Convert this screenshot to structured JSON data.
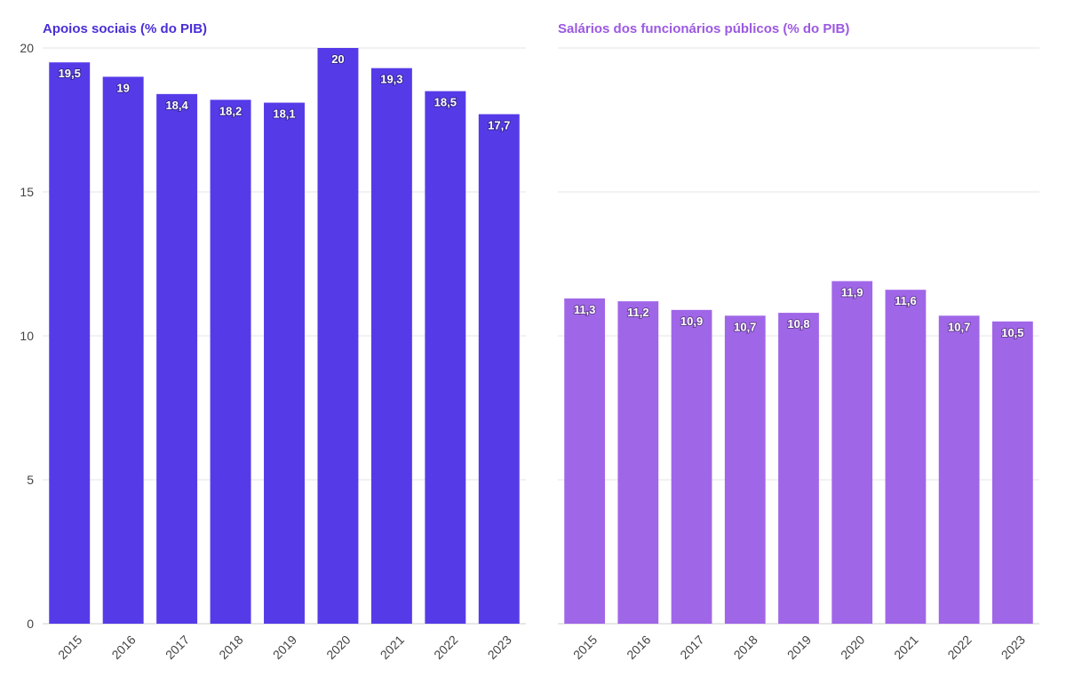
{
  "chart_data": [
    {
      "type": "bar",
      "title": "Apoios sociais (% do PIB)",
      "xlabel": "",
      "ylabel": "",
      "categories": [
        "2015",
        "2016",
        "2017",
        "2018",
        "2019",
        "2020",
        "2021",
        "2022",
        "2023"
      ],
      "values": [
        19.5,
        19,
        18.4,
        18.2,
        18.1,
        20,
        19.3,
        18.5,
        17.7
      ],
      "value_labels": [
        "19,5",
        "19",
        "18,4",
        "18,2",
        "18,1",
        "20",
        "19,3",
        "18,5",
        "17,7"
      ],
      "ylim": [
        0,
        20
      ],
      "yticks": [
        0,
        5,
        10,
        15,
        20
      ],
      "grid": true,
      "color": "#553be8",
      "title_color": "#4a2fd6"
    },
    {
      "type": "bar",
      "title": "Salários dos funcionários públicos (% do PIB)",
      "xlabel": "",
      "ylabel": "",
      "categories": [
        "2015",
        "2016",
        "2017",
        "2018",
        "2019",
        "2020",
        "2021",
        "2022",
        "2023"
      ],
      "values": [
        11.3,
        11.2,
        10.9,
        10.7,
        10.8,
        11.9,
        11.6,
        10.7,
        10.5
      ],
      "value_labels": [
        "11,3",
        "11,2",
        "10,9",
        "10,7",
        "10,8",
        "11,9",
        "11,6",
        "10,7",
        "10,5"
      ],
      "ylim": [
        0,
        20
      ],
      "yticks": [
        0,
        5,
        10,
        15,
        20
      ],
      "grid": true,
      "color": "#a066e8",
      "title_color": "#9c59e0"
    }
  ]
}
